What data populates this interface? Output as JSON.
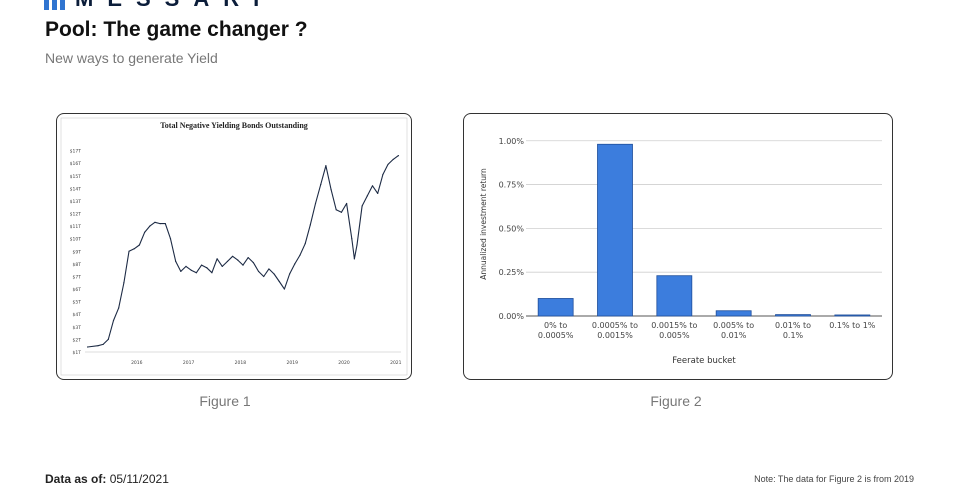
{
  "brand": {
    "name": "MESSARI",
    "color": "#2f74d0"
  },
  "header": {
    "title": "Pool: The game changer ?",
    "subtitle": "New ways to generate Yield"
  },
  "figures": [
    {
      "caption": "Figure 1"
    },
    {
      "caption": "Figure 2"
    }
  ],
  "footer": {
    "date_label": "Data as of:",
    "date_value": "05/11/2021",
    "note": "Note: The data for Figure 2 is from 2019"
  },
  "chart_data": [
    {
      "type": "line",
      "title": "Total Negative Yielding Bonds Outstanding",
      "xlabel": "",
      "ylabel": "",
      "y_ticks": [
        "$1T",
        "$2T",
        "$3T",
        "$4T",
        "$5T",
        "$6T",
        "$7T",
        "$8T",
        "$9T",
        "$10T",
        "$11T",
        "$12T",
        "$13T",
        "$14T",
        "$15T",
        "$16T",
        "$17T"
      ],
      "x_ticks": [
        "2016",
        "2017",
        "2018",
        "2019",
        "2020",
        "2021"
      ],
      "ylim": [
        1,
        18
      ],
      "xlim": [
        2015.0,
        2021.1
      ],
      "series": [
        {
          "x": [
            2015.05,
            2015.25,
            2015.35,
            2015.45,
            2015.55,
            2015.65,
            2015.75,
            2015.85,
            2015.95,
            2016.05,
            2016.15,
            2016.25,
            2016.35,
            2016.45,
            2016.55,
            2016.65,
            2016.75,
            2016.85,
            2016.95,
            2017.05,
            2017.15,
            2017.25,
            2017.35,
            2017.45,
            2017.55,
            2017.65,
            2017.75,
            2017.85,
            2017.95,
            2018.05,
            2018.15,
            2018.25,
            2018.35,
            2018.45,
            2018.55,
            2018.65,
            2018.75,
            2018.85,
            2018.95,
            2019.05,
            2019.15,
            2019.25,
            2019.35,
            2019.45,
            2019.55,
            2019.65,
            2019.75,
            2019.85,
            2019.95,
            2020.05,
            2020.15,
            2020.2,
            2020.25,
            2020.35,
            2020.45,
            2020.55,
            2020.65,
            2020.75,
            2020.85,
            2020.95,
            2021.05
          ],
          "y": [
            1.4,
            1.5,
            1.6,
            2.0,
            3.5,
            4.5,
            6.5,
            9.0,
            9.2,
            9.5,
            10.5,
            11.0,
            11.3,
            11.2,
            11.2,
            10.0,
            8.2,
            7.4,
            7.8,
            7.5,
            7.3,
            7.9,
            7.7,
            7.3,
            8.4,
            7.8,
            8.2,
            8.6,
            8.3,
            7.9,
            8.5,
            8.1,
            7.4,
            7.0,
            7.6,
            7.2,
            6.6,
            6.0,
            7.2,
            8.0,
            8.7,
            9.6,
            11.1,
            12.8,
            14.3,
            15.8,
            13.9,
            12.3,
            12.1,
            12.8,
            10.0,
            8.4,
            9.5,
            12.6,
            13.4,
            14.2,
            13.6,
            15.1,
            15.9,
            16.3,
            16.6
          ]
        }
      ]
    },
    {
      "type": "bar",
      "title": "",
      "xlabel": "Feerate bucket",
      "ylabel": "Annualized investment return",
      "categories": [
        "0% to 0.0005%",
        "0.0005% to 0.0015%",
        "0.0015% to 0.005%",
        "0.005% to 0.01%",
        "0.01% to 0.1%",
        "0.1% to 1%"
      ],
      "y_ticks": [
        "0.00%",
        "0.25%",
        "0.50%",
        "0.75%",
        "1.00%"
      ],
      "ylim": [
        0,
        1.05
      ],
      "grid": true,
      "bar_color": "#3c7ddd",
      "series": [
        {
          "values": [
            0.1,
            0.98,
            0.23,
            0.03,
            0.008,
            0.006
          ]
        }
      ]
    }
  ]
}
